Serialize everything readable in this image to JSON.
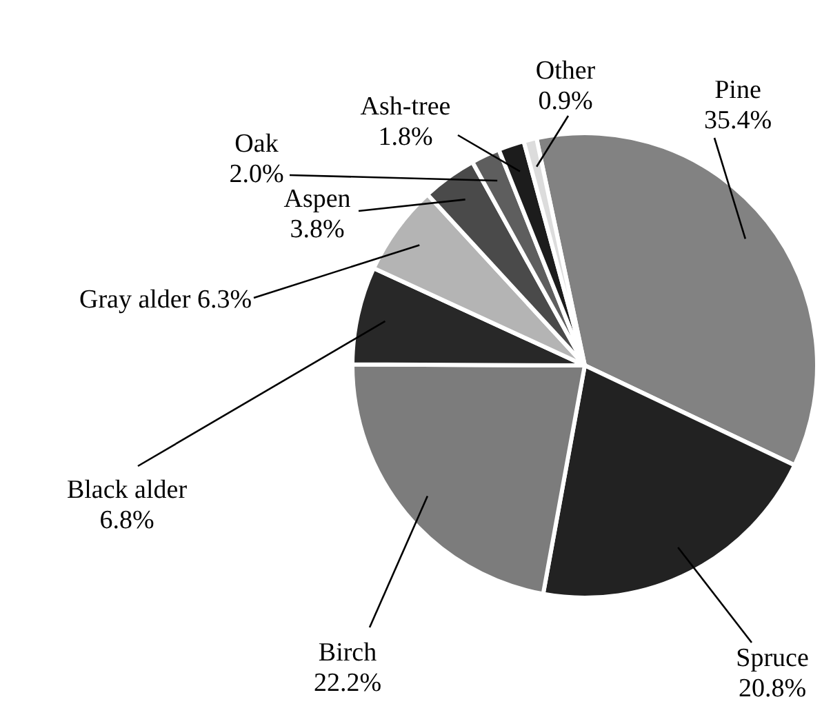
{
  "chart_data": {
    "type": "pie",
    "categories": [
      "Pine",
      "Spruce",
      "Birch",
      "Black alder",
      "Gray alder",
      "Aspen",
      "Oak",
      "Ash-tree",
      "Other"
    ],
    "values": [
      35.4,
      20.8,
      22.2,
      6.8,
      6.3,
      3.8,
      2.0,
      1.8,
      0.9
    ],
    "colors": [
      "#828282",
      "#222222",
      "#7c7c7c",
      "#282828",
      "#b4b4b4",
      "#4a4a4a",
      "#5e5e5e",
      "#1c1c1c",
      "#dcdcdc"
    ],
    "value_labels": [
      "35.4%",
      "20.8%",
      "22.2%",
      "6.8%",
      "6.3%",
      "3.8%",
      "2.0%",
      "1.8%",
      "0.9%"
    ],
    "legend": false
  }
}
